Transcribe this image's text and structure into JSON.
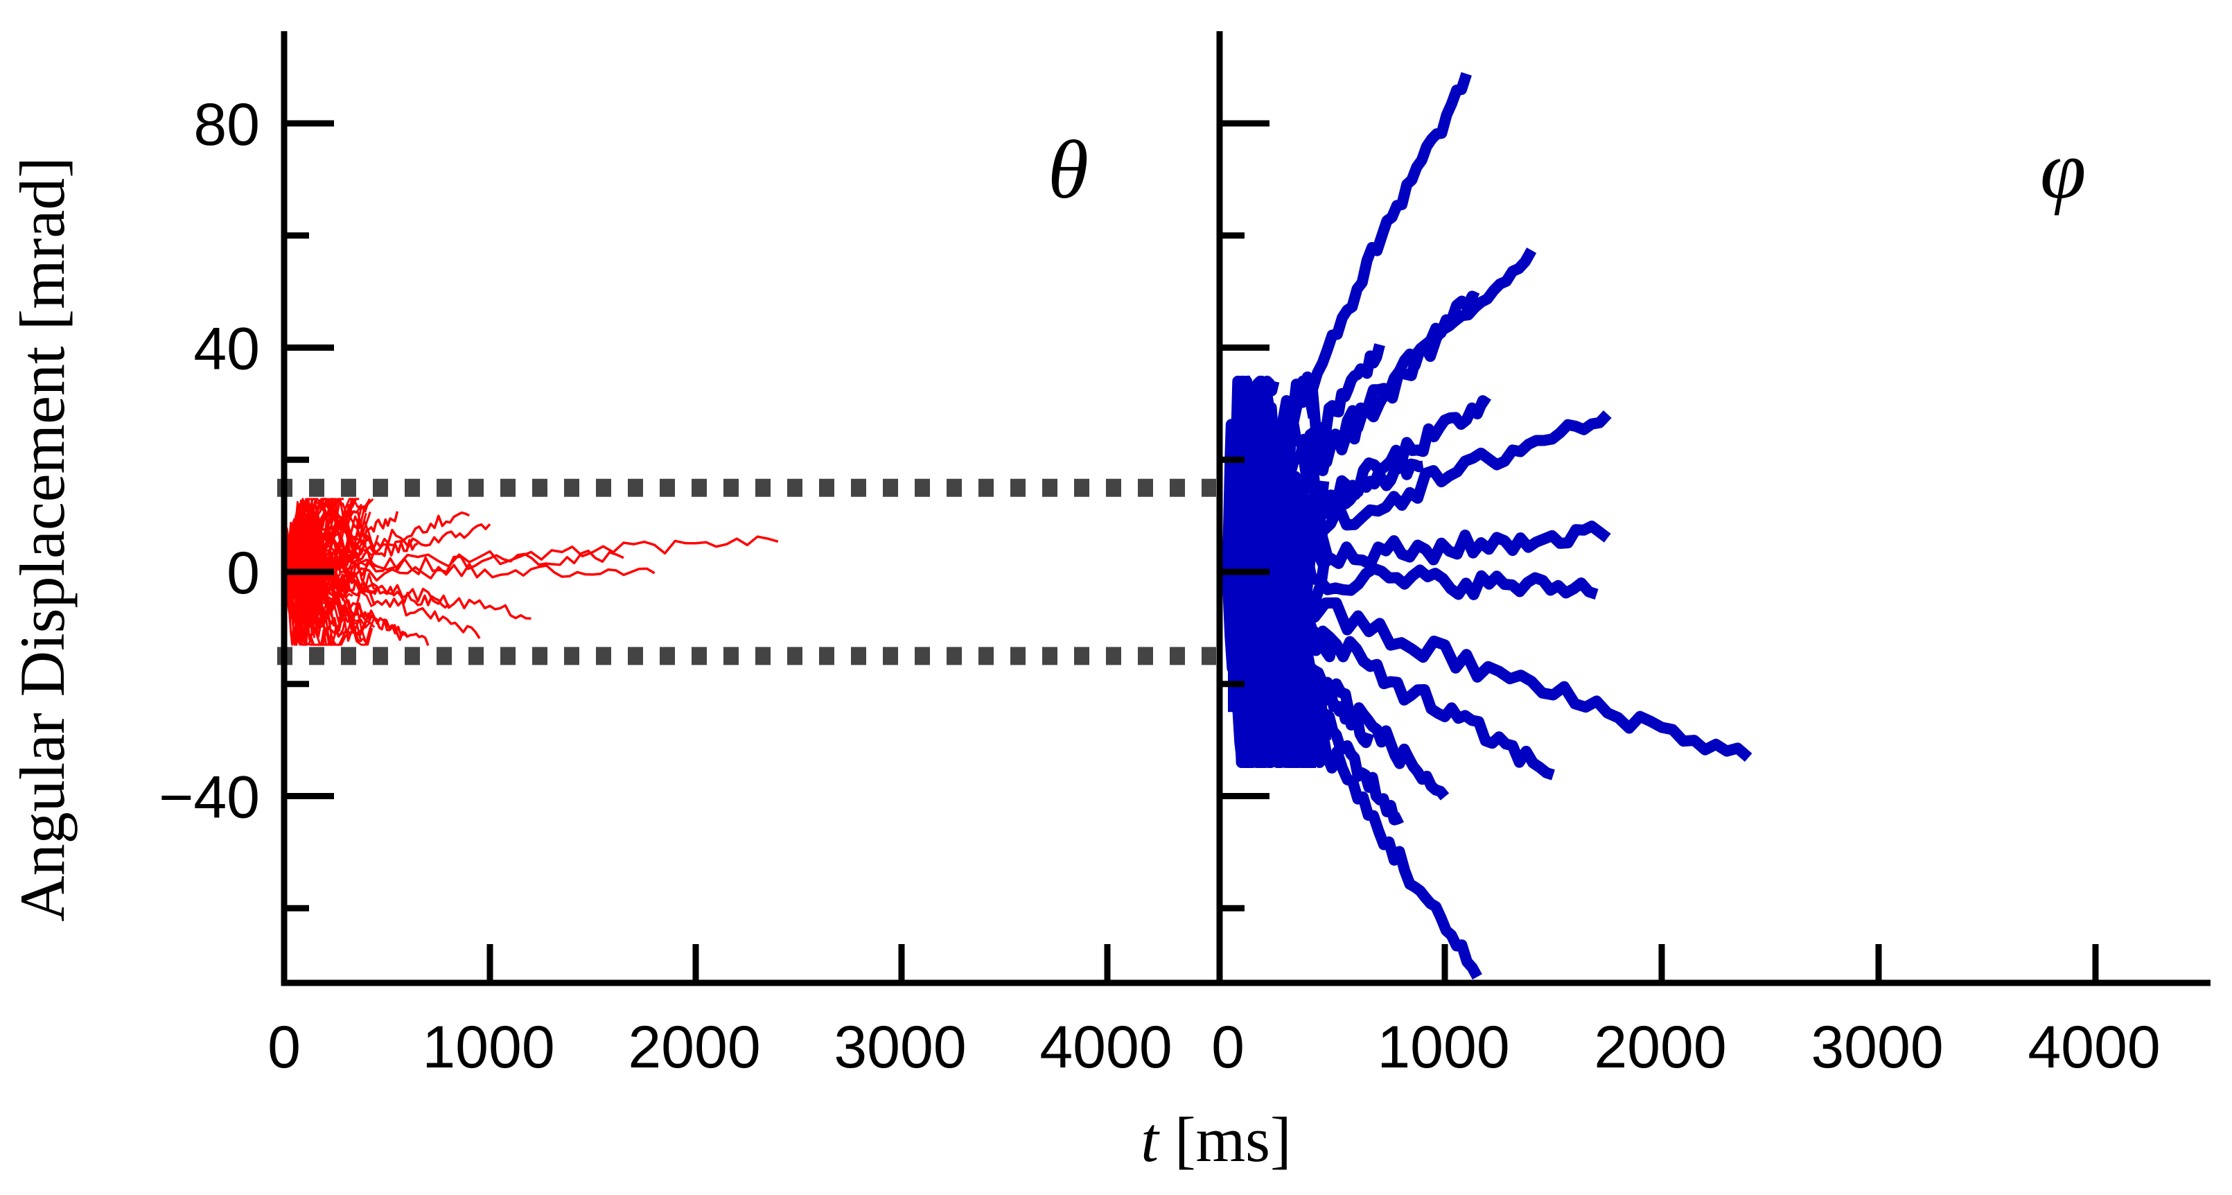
{
  "chart_data": {
    "type": "line",
    "ylabel": "Angular Displacement [mrad]",
    "xlabel_var": "t",
    "xlabel_unit": " [ms]",
    "ylim": [
      -70,
      100
    ],
    "y_ticks": [
      80,
      40,
      0,
      -40
    ],
    "y_tick_labels": [
      "80",
      "40",
      "0",
      "−40"
    ],
    "y_minor_ticks": [
      -60,
      -20,
      20,
      60
    ],
    "threshold_band": [
      -15,
      15
    ],
    "panels": [
      {
        "label": "θ",
        "series_name": "theta",
        "color": "#ff0000",
        "xlim": [
          0,
          4500
        ],
        "x_ticks": [
          0,
          1000,
          2000,
          3000,
          4000
        ],
        "x_tick_labels": [
          "0",
          "1000",
          "2000",
          "3000",
          "4000"
        ],
        "trajectory_endpoints": [
          {
            "t": 2400,
            "y": 6
          },
          {
            "t": 1800,
            "y": 0
          },
          {
            "t": 1650,
            "y": 3
          },
          {
            "t": 1200,
            "y": -8
          },
          {
            "t": 1000,
            "y": 8
          },
          {
            "t": 950,
            "y": -11
          },
          {
            "t": 900,
            "y": 11
          },
          {
            "t": 800,
            "y": -6
          },
          {
            "t": 700,
            "y": -13
          },
          {
            "t": 650,
            "y": 5
          },
          {
            "t": 600,
            "y": -12
          },
          {
            "t": 550,
            "y": 10
          },
          {
            "t": 450,
            "y": -3
          },
          {
            "t": 350,
            "y": 2
          }
        ]
      },
      {
        "label": "φ",
        "series_name": "phi",
        "color": "#0000c0",
        "xlim": [
          0,
          4500
        ],
        "x_ticks": [
          0,
          1000,
          2000,
          3000,
          4000
        ],
        "x_tick_labels": [
          "0",
          "1000",
          "2000",
          "3000",
          "4000"
        ],
        "trajectory_endpoints": [
          {
            "t": 1100,
            "y": 88
          },
          {
            "t": 1400,
            "y": 57
          },
          {
            "t": 1150,
            "y": 50
          },
          {
            "t": 1200,
            "y": 30
          },
          {
            "t": 1750,
            "y": 28
          },
          {
            "t": 1750,
            "y": 7
          },
          {
            "t": 1700,
            "y": -3
          },
          {
            "t": 1500,
            "y": -36
          },
          {
            "t": 2400,
            "y": -33
          },
          {
            "t": 1150,
            "y": -72
          },
          {
            "t": 1000,
            "y": -40
          },
          {
            "t": 900,
            "y": 20
          },
          {
            "t": 800,
            "y": -45
          },
          {
            "t": 700,
            "y": 40
          },
          {
            "t": 650,
            "y": -30
          },
          {
            "t": 600,
            "y": 15
          },
          {
            "t": 500,
            "y": -15
          }
        ]
      }
    ]
  }
}
